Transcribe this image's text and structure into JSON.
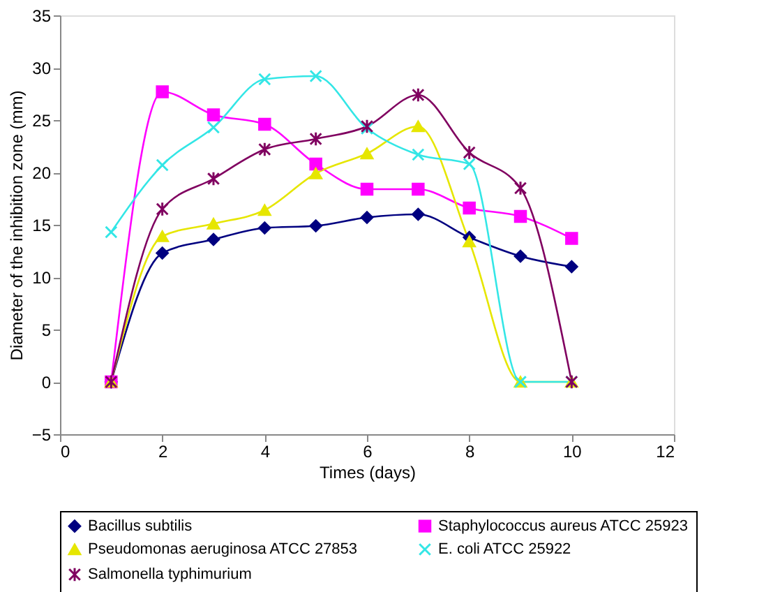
{
  "chart_data": {
    "type": "line",
    "xlabel": "Times (days)",
    "ylabel": "Diameter of the inhibition  zone (mm)",
    "x": [
      1,
      2,
      3,
      4,
      5,
      6,
      7,
      8,
      9,
      10
    ],
    "series": [
      {
        "name": "Bacillus subtilis",
        "color": "#000080",
        "marker": "diamond",
        "values": [
          0,
          12.3,
          13.6,
          14.7,
          14.9,
          15.7,
          16,
          13.8,
          12,
          11
        ]
      },
      {
        "name": "Staphylococcus aureus ATCC 25923",
        "color": "#ff00ff",
        "marker": "square",
        "values": [
          0,
          27.7,
          25.5,
          24.6,
          20.8,
          18.4,
          18.4,
          16.6,
          15.8,
          13.7
        ]
      },
      {
        "name": "Pseudomonas aeruginosa ATCC 27853",
        "color": "#e6e600",
        "marker": "triangle",
        "values": [
          0,
          13.9,
          15.1,
          16.4,
          19.9,
          21.8,
          24.4,
          13.4,
          0,
          0
        ]
      },
      {
        "name": "E. coli ATCC 25922",
        "color": "#33e6e6",
        "marker": "cross",
        "values": [
          14.3,
          20.7,
          24.3,
          28.9,
          29.2,
          24.2,
          21.7,
          20.8,
          0,
          0
        ]
      },
      {
        "name": "Salmonella typhimurium",
        "color": "#800060",
        "marker": "cross",
        "values": [
          0,
          16.5,
          19.4,
          22.2,
          23.2,
          24.4,
          27.4,
          21.9,
          18.5,
          0
        ]
      }
    ],
    "xlim": [
      0,
      12
    ],
    "xticks": [
      0,
      2,
      4,
      6,
      8,
      10,
      12
    ],
    "ylim": [
      -5,
      35
    ],
    "yticks": [
      -5,
      0,
      5,
      10,
      15,
      20,
      25,
      30,
      35
    ],
    "grid": false,
    "legend": "bottom",
    "line_style": "solid"
  }
}
